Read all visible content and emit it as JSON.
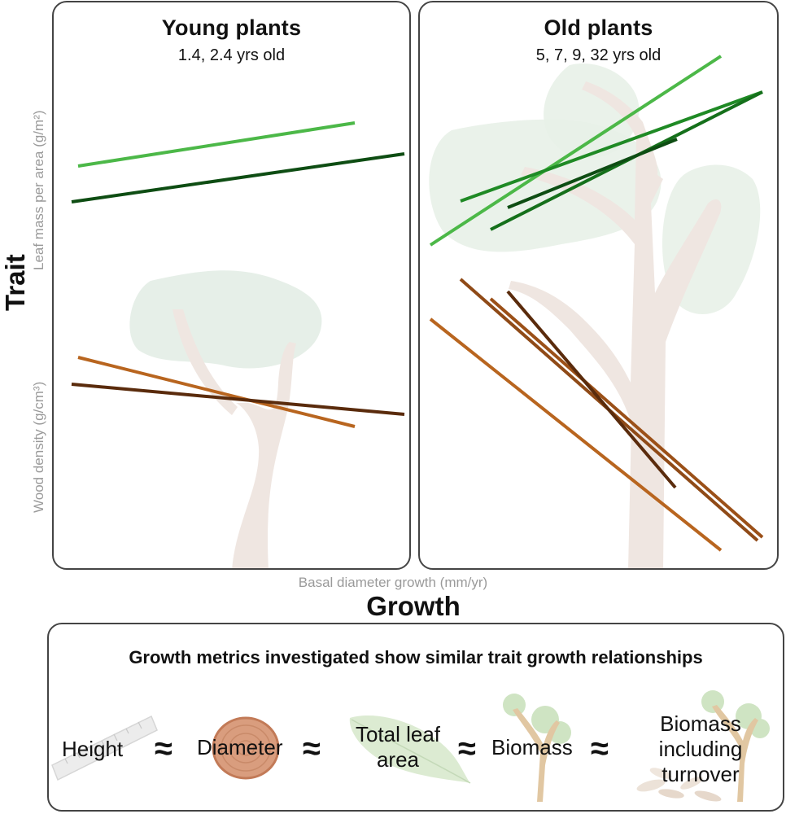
{
  "panels": {
    "young": {
      "title": "Young plants",
      "subtitle": "1.4, 2.4 yrs old"
    },
    "old": {
      "title": "Old plants",
      "subtitle": "5, 7, 9, 32 yrs old"
    }
  },
  "axes": {
    "y_label_leaf": "Leaf  mass per area  (g/m²)",
    "y_label_wood": "Wood density (g/cm³)",
    "y_label_main": "Trait",
    "x_label": "Basal diameter growth (mm/yr)",
    "x_label_main": "Growth"
  },
  "colors": {
    "leaf_light": "#4cb848",
    "leaf_mid": "#1f8a25",
    "leaf_dark": "#0e4d13",
    "wood_light": "#b8651f",
    "wood_mid": "#8f4a17",
    "wood_dark": "#5a2b0c",
    "tree_trunk": "#efe6e1",
    "tree_canopy": "#e4eee4",
    "border": "#444444"
  },
  "metrics": {
    "title": "Growth metrics investigated show similar trait growth relationships",
    "items": [
      {
        "label": "Height",
        "icon": "ruler-icon"
      },
      {
        "label": "Diameter",
        "icon": "tree-ring-icon"
      },
      {
        "label": "Total leaf area",
        "icon": "leaf-icon"
      },
      {
        "label": "Biomass",
        "icon": "sapling-icon"
      },
      {
        "label": "Biomass including turnover",
        "icon": "sapling-litter-icon"
      }
    ],
    "approx_symbol": "≈"
  }
}
